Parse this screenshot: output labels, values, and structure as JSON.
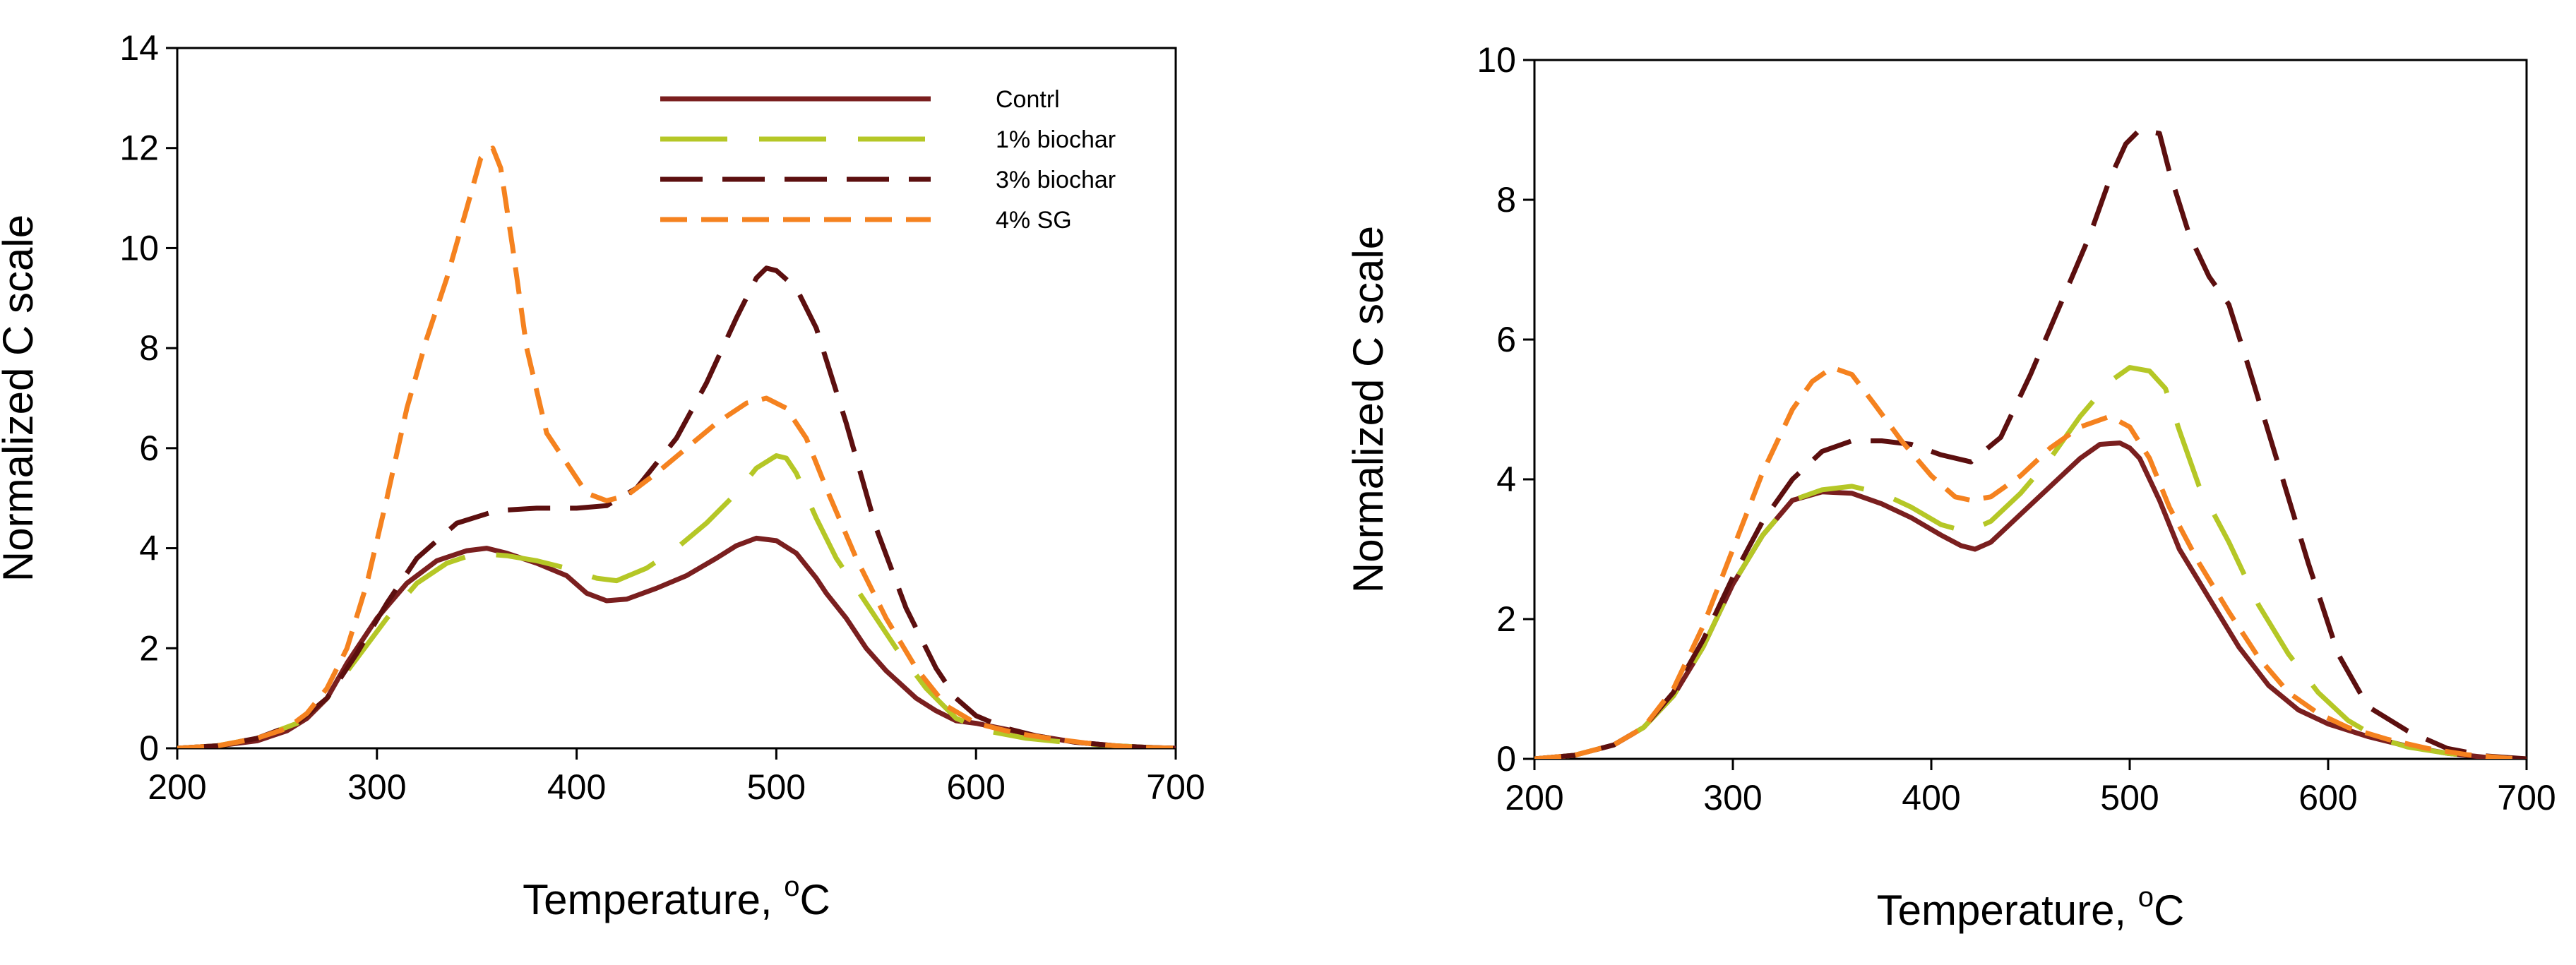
{
  "chart_data": [
    {
      "type": "line",
      "title": "",
      "xlabel": "Temperature, ",
      "xlabel_unit_sup": "o",
      "xlabel_unit": "C",
      "ylabel": "Normalized C scale",
      "xlim": [
        200,
        700
      ],
      "ylim": [
        0,
        14
      ],
      "xticks": [
        "200",
        "300",
        "400",
        "500",
        "600",
        "700"
      ],
      "yticks": [
        "0",
        "2",
        "4",
        "6",
        "8",
        "10",
        "12",
        "14"
      ],
      "grid": false,
      "legend_position": "top-right",
      "series": [
        {
          "name": "Contrl",
          "color": "#7a1f1f",
          "dash": "solid",
          "x": [
            200,
            220,
            240,
            255,
            265,
            275,
            285,
            300,
            315,
            330,
            345,
            355,
            365,
            380,
            395,
            405,
            415,
            425,
            440,
            455,
            470,
            480,
            490,
            500,
            510,
            520,
            525,
            535,
            545,
            555,
            570,
            580,
            590,
            600,
            615,
            630,
            650,
            670,
            685,
            700
          ],
          "y": [
            0.0,
            0.05,
            0.15,
            0.35,
            0.6,
            1.0,
            1.7,
            2.6,
            3.3,
            3.75,
            3.95,
            4.0,
            3.9,
            3.7,
            3.45,
            3.1,
            2.95,
            2.98,
            3.2,
            3.45,
            3.8,
            4.05,
            4.2,
            4.15,
            3.9,
            3.4,
            3.1,
            2.6,
            2.0,
            1.55,
            1.0,
            0.75,
            0.55,
            0.5,
            0.38,
            0.25,
            0.12,
            0.05,
            0.02,
            0.0
          ]
        },
        {
          "name": "1% biochar",
          "color": "#b5c726",
          "dash": "longdash",
          "x": [
            200,
            220,
            240,
            260,
            275,
            290,
            305,
            320,
            335,
            350,
            365,
            380,
            395,
            410,
            420,
            435,
            450,
            465,
            480,
            490,
            500,
            505,
            510,
            520,
            530,
            545,
            560,
            575,
            590,
            605,
            625,
            645,
            665,
            685,
            700
          ],
          "y": [
            0.0,
            0.05,
            0.2,
            0.5,
            1.0,
            1.8,
            2.6,
            3.3,
            3.7,
            3.9,
            3.85,
            3.75,
            3.6,
            3.4,
            3.35,
            3.6,
            4.0,
            4.5,
            5.1,
            5.6,
            5.85,
            5.8,
            5.5,
            4.6,
            3.8,
            2.9,
            2.0,
            1.2,
            0.6,
            0.35,
            0.2,
            0.12,
            0.06,
            0.02,
            0.0
          ]
        },
        {
          "name": "3% biochar",
          "color": "#5c0f0f",
          "dash": "dash",
          "x": [
            200,
            220,
            240,
            260,
            275,
            290,
            305,
            320,
            340,
            360,
            380,
            400,
            415,
            430,
            450,
            465,
            480,
            490,
            495,
            500,
            510,
            520,
            535,
            550,
            565,
            580,
            590,
            600,
            615,
            630,
            650,
            670,
            685,
            700
          ],
          "y": [
            0.0,
            0.05,
            0.2,
            0.5,
            1.0,
            1.9,
            2.9,
            3.8,
            4.5,
            4.75,
            4.8,
            4.8,
            4.85,
            5.2,
            6.2,
            7.3,
            8.6,
            9.4,
            9.6,
            9.55,
            9.2,
            8.4,
            6.5,
            4.4,
            2.8,
            1.6,
            1.0,
            0.65,
            0.4,
            0.25,
            0.12,
            0.05,
            0.02,
            0.0
          ]
        },
        {
          "name": "4% SG",
          "color": "#f5821f",
          "dash": "shortdash",
          "x": [
            200,
            220,
            240,
            255,
            265,
            275,
            285,
            295,
            305,
            315,
            325,
            335,
            345,
            352,
            358,
            362,
            368,
            375,
            385,
            395,
            405,
            415,
            425,
            440,
            455,
            470,
            485,
            495,
            505,
            515,
            525,
            540,
            555,
            570,
            585,
            600,
            620,
            640,
            660,
            680,
            700
          ],
          "y": [
            0.0,
            0.05,
            0.2,
            0.4,
            0.7,
            1.2,
            2.0,
            3.3,
            5.0,
            6.8,
            8.2,
            9.4,
            10.8,
            11.8,
            12.0,
            11.6,
            10.0,
            8.0,
            6.3,
            5.7,
            5.1,
            4.95,
            5.05,
            5.5,
            6.0,
            6.5,
            6.9,
            7.0,
            6.8,
            6.2,
            5.2,
            3.8,
            2.6,
            1.6,
            0.85,
            0.5,
            0.3,
            0.18,
            0.08,
            0.02,
            0.0
          ]
        }
      ]
    },
    {
      "type": "line",
      "title": "",
      "xlabel": "Temperature, ",
      "xlabel_unit_sup": "o",
      "xlabel_unit": "C",
      "ylabel": "Normalized C scale",
      "xlim": [
        200,
        700
      ],
      "ylim": [
        0,
        10
      ],
      "xticks": [
        "200",
        "300",
        "400",
        "500",
        "600",
        "700"
      ],
      "yticks": [
        "0",
        "2",
        "4",
        "6",
        "8",
        "10"
      ],
      "grid": false,
      "series": [
        {
          "name": "Contrl",
          "color": "#7a1f1f",
          "dash": "solid",
          "x": [
            200,
            220,
            240,
            255,
            270,
            285,
            300,
            315,
            330,
            345,
            360,
            375,
            390,
            405,
            415,
            422,
            430,
            445,
            460,
            475,
            485,
            495,
            500,
            505,
            515,
            525,
            540,
            555,
            570,
            585,
            600,
            620,
            640,
            660,
            680,
            700
          ],
          "y": [
            0.0,
            0.05,
            0.2,
            0.45,
            0.9,
            1.6,
            2.5,
            3.2,
            3.7,
            3.82,
            3.8,
            3.65,
            3.45,
            3.2,
            3.05,
            3.0,
            3.1,
            3.5,
            3.9,
            4.3,
            4.5,
            4.52,
            4.45,
            4.3,
            3.7,
            3.0,
            2.3,
            1.6,
            1.05,
            0.7,
            0.5,
            0.32,
            0.18,
            0.08,
            0.02,
            0.0
          ]
        },
        {
          "name": "1% biochar",
          "color": "#b5c726",
          "dash": "longdash",
          "x": [
            200,
            220,
            240,
            255,
            270,
            285,
            300,
            315,
            330,
            345,
            360,
            375,
            390,
            405,
            418,
            430,
            445,
            460,
            475,
            490,
            500,
            510,
            518,
            525,
            535,
            550,
            565,
            580,
            595,
            610,
            625,
            640,
            660,
            680,
            700
          ],
          "y": [
            0.0,
            0.05,
            0.2,
            0.45,
            0.9,
            1.6,
            2.5,
            3.2,
            3.7,
            3.85,
            3.9,
            3.8,
            3.6,
            3.35,
            3.25,
            3.4,
            3.8,
            4.3,
            4.9,
            5.4,
            5.6,
            5.55,
            5.3,
            4.7,
            3.9,
            3.1,
            2.2,
            1.5,
            0.95,
            0.55,
            0.3,
            0.17,
            0.08,
            0.02,
            0.0
          ]
        },
        {
          "name": "3% biochar",
          "color": "#5c0f0f",
          "dash": "dash",
          "x": [
            200,
            220,
            240,
            255,
            270,
            285,
            300,
            315,
            330,
            345,
            360,
            375,
            390,
            405,
            420,
            435,
            450,
            465,
            480,
            490,
            498,
            505,
            515,
            520,
            530,
            540,
            550,
            560,
            575,
            590,
            605,
            620,
            640,
            660,
            680,
            700
          ],
          "y": [
            0.0,
            0.05,
            0.2,
            0.45,
            0.95,
            1.7,
            2.6,
            3.4,
            4.0,
            4.4,
            4.55,
            4.55,
            4.5,
            4.35,
            4.25,
            4.6,
            5.5,
            6.5,
            7.5,
            8.3,
            8.8,
            9.0,
            8.95,
            8.4,
            7.5,
            6.9,
            6.5,
            5.6,
            4.2,
            2.8,
            1.5,
            0.75,
            0.4,
            0.15,
            0.04,
            0.0
          ]
        },
        {
          "name": "4% SG",
          "color": "#f5821f",
          "dash": "shortdash",
          "x": [
            200,
            220,
            240,
            255,
            270,
            285,
            300,
            315,
            330,
            340,
            350,
            360,
            372,
            385,
            400,
            412,
            420,
            430,
            445,
            460,
            475,
            490,
            500,
            510,
            520,
            535,
            550,
            565,
            580,
            595,
            610,
            630,
            650,
            670,
            690,
            700
          ],
          "y": [
            0.0,
            0.05,
            0.2,
            0.45,
            1.0,
            1.9,
            3.0,
            4.1,
            5.0,
            5.4,
            5.6,
            5.5,
            5.05,
            4.55,
            4.05,
            3.75,
            3.7,
            3.75,
            4.05,
            4.45,
            4.75,
            4.9,
            4.75,
            4.3,
            3.6,
            2.8,
            2.1,
            1.45,
            0.95,
            0.65,
            0.45,
            0.28,
            0.15,
            0.06,
            0.01,
            0.0
          ]
        }
      ]
    }
  ]
}
